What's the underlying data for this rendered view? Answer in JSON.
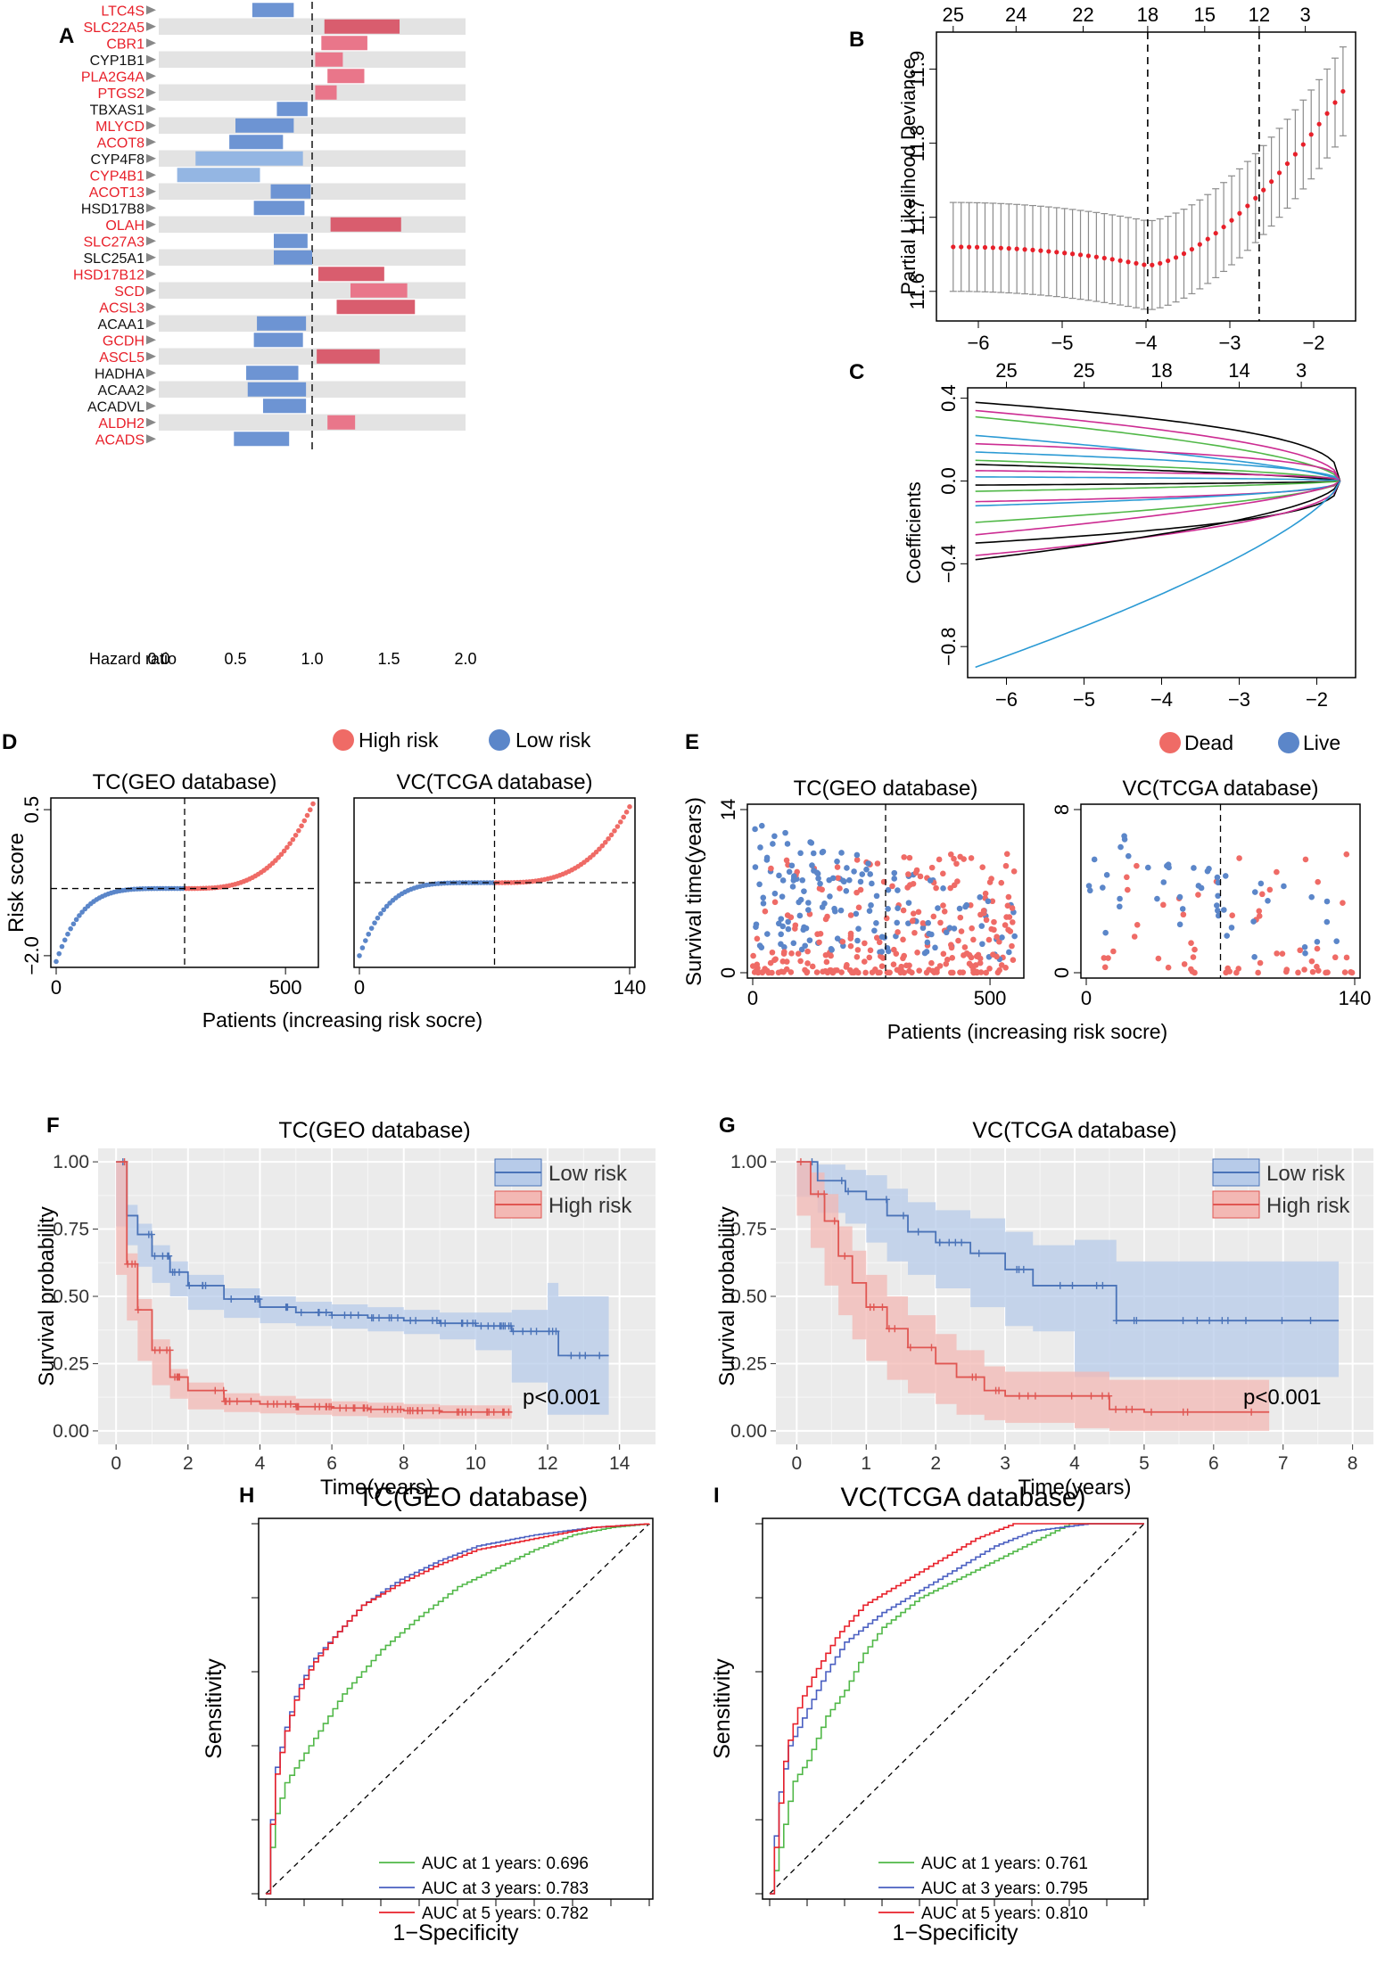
{
  "panel_labels": [
    "A",
    "B",
    "C",
    "D",
    "E",
    "F",
    "G",
    "H",
    "I"
  ],
  "chart_data": [
    {
      "panel": "A",
      "type": "bar",
      "subtype": "forest-interval",
      "xlabel": "Hazard ratio",
      "xlim": [
        0.0,
        2.0
      ],
      "xticks": [
        "0.0",
        "0.5",
        "1.0",
        "1.5",
        "2.0"
      ],
      "reference_line": 1.0,
      "significant_color": "#e8202a",
      "normal_color": "#111111",
      "genes": [
        {
          "name": "LTC4S",
          "low": 0.61,
          "high": 0.88,
          "sig": true
        },
        {
          "name": "SLC22A5",
          "low": 1.08,
          "high": 1.57,
          "sig": true
        },
        {
          "name": "CBR1",
          "low": 1.06,
          "high": 1.36,
          "sig": true
        },
        {
          "name": "CYP1B1",
          "low": 1.02,
          "high": 1.2,
          "sig": false
        },
        {
          "name": "PLA2G4A",
          "low": 1.1,
          "high": 1.34,
          "sig": true
        },
        {
          "name": "PTGS2",
          "low": 1.02,
          "high": 1.16,
          "sig": true
        },
        {
          "name": "TBXAS1",
          "low": 0.77,
          "high": 0.97,
          "sig": false
        },
        {
          "name": "MLYCD",
          "low": 0.5,
          "high": 0.88,
          "sig": true
        },
        {
          "name": "ACOT8",
          "low": 0.46,
          "high": 0.81,
          "sig": true
        },
        {
          "name": "CYP4F8",
          "low": 0.24,
          "high": 0.94,
          "sig": false
        },
        {
          "name": "CYP4B1",
          "low": 0.12,
          "high": 0.66,
          "sig": true
        },
        {
          "name": "ACOT13",
          "low": 0.73,
          "high": 0.99,
          "sig": true
        },
        {
          "name": "HSD17B8",
          "low": 0.62,
          "high": 0.95,
          "sig": false
        },
        {
          "name": "OLAH",
          "low": 1.12,
          "high": 1.58,
          "sig": true
        },
        {
          "name": "SLC27A3",
          "low": 0.75,
          "high": 0.97,
          "sig": true
        },
        {
          "name": "SLC25A1",
          "low": 0.75,
          "high": 1.0,
          "sig": false
        },
        {
          "name": "HSD17B12",
          "low": 1.04,
          "high": 1.47,
          "sig": true
        },
        {
          "name": "SCD",
          "low": 1.25,
          "high": 1.62,
          "sig": true
        },
        {
          "name": "ACSL3",
          "low": 1.16,
          "high": 1.67,
          "sig": true
        },
        {
          "name": "ACAA1",
          "low": 0.64,
          "high": 0.96,
          "sig": false
        },
        {
          "name": "GCDH",
          "low": 0.62,
          "high": 0.94,
          "sig": true
        },
        {
          "name": "ASCL5",
          "low": 1.03,
          "high": 1.44,
          "sig": true
        },
        {
          "name": "HADHA",
          "low": 0.57,
          "high": 0.91,
          "sig": false
        },
        {
          "name": "ACAA2",
          "low": 0.58,
          "high": 0.96,
          "sig": false
        },
        {
          "name": "ACADVL",
          "low": 0.68,
          "high": 0.96,
          "sig": false
        },
        {
          "name": "ALDH2",
          "low": 1.1,
          "high": 1.28,
          "sig": true
        },
        {
          "name": "ACADS",
          "low": 0.49,
          "high": 0.85,
          "sig": true
        }
      ]
    },
    {
      "panel": "B",
      "type": "scatter",
      "subtype": "lasso-cv",
      "ylabel": "Partial Likelihood Deviance",
      "xlim": [
        -6.5,
        -1.5
      ],
      "ylim": [
        11.56,
        11.95
      ],
      "xticks": [
        -6,
        -5,
        -4,
        -3,
        -2
      ],
      "yticks": [
        11.6,
        11.7,
        11.8,
        11.9
      ],
      "top_ticks": [
        "25",
        "24",
        "22",
        "18",
        "15",
        "12",
        "3"
      ],
      "lambda_min": -3.98,
      "lambda_1se": -2.65,
      "curve": {
        "x_start": -6.3,
        "x_end": -1.65,
        "points": 50,
        "y_start": 11.66,
        "y_min": 11.635,
        "y_end": 11.87,
        "ci_half_width": 0.06
      },
      "point_color": "#e8202a"
    },
    {
      "panel": "C",
      "type": "line",
      "subtype": "lasso-path",
      "ylabel": "Coefficients",
      "xlim": [
        -6.5,
        -1.5
      ],
      "ylim": [
        -0.95,
        0.45
      ],
      "xticks": [
        -6,
        -5,
        -4,
        -3,
        -2
      ],
      "yticks": [
        "0.4",
        "0.0",
        "-0.4",
        "-0.8"
      ],
      "top_ticks": [
        "25",
        "25",
        "18",
        "14",
        "3"
      ],
      "paths": [
        {
          "start": 0.38,
          "color": "#000000"
        },
        {
          "start": 0.34,
          "color": "#cc2c92"
        },
        {
          "start": 0.31,
          "color": "#51b848"
        },
        {
          "start": 0.22,
          "color": "#2b9ad4"
        },
        {
          "start": 0.18,
          "color": "#cc2c92"
        },
        {
          "start": 0.14,
          "color": "#2b9ad4"
        },
        {
          "start": 0.1,
          "color": "#51b848"
        },
        {
          "start": 0.08,
          "color": "#000000"
        },
        {
          "start": 0.05,
          "color": "#cc2c92"
        },
        {
          "start": 0.02,
          "color": "#2b9ad4"
        },
        {
          "start": -0.02,
          "color": "#000000"
        },
        {
          "start": -0.05,
          "color": "#51b848"
        },
        {
          "start": -0.1,
          "color": "#cc2c92"
        },
        {
          "start": -0.12,
          "color": "#2b9ad4"
        },
        {
          "start": -0.2,
          "color": "#51b848"
        },
        {
          "start": -0.26,
          "color": "#cc2c92"
        },
        {
          "start": -0.3,
          "color": "#000000"
        },
        {
          "start": -0.36,
          "color": "#cc2c92"
        },
        {
          "start": -0.38,
          "color": "#000000"
        },
        {
          "start": -0.9,
          "color": "#2b9ad4"
        }
      ],
      "converge_x": -1.7
    },
    {
      "panel": "D",
      "type": "scatter",
      "subtype": "risk-score-curve",
      "legend": [
        "High risk",
        "Low risk"
      ],
      "ylabel": "Risk score",
      "xlabel": "Patients (increasing risk socre)",
      "high_color": "#ef6b66",
      "low_color": "#5b86c9",
      "subplots": [
        {
          "title": "TC(GEO database)",
          "n": 560,
          "cutoff": 280,
          "ylim": [
            -2.2,
            0.7
          ],
          "yticks": [
            "0.5",
            "−2.0"
          ],
          "xticks": [
            "0",
            "500"
          ],
          "score_min": -2.1,
          "score_mid": -0.85,
          "score_max": 0.6
        },
        {
          "title": "VC(TCGA database)",
          "n": 140,
          "cutoff": 70,
          "ylim": [
            -2.2,
            0.7
          ],
          "yticks": [],
          "xticks": [
            "0",
            "140"
          ],
          "score_min": -2.0,
          "score_mid": -0.75,
          "score_max": 0.55
        }
      ]
    },
    {
      "panel": "E",
      "type": "scatter",
      "subtype": "survival-status",
      "legend": [
        "Dead",
        "Live"
      ],
      "ylabel": "Survival time(years)",
      "xlabel": "Patients (increasing risk socre)",
      "dead_color": "#ef6b66",
      "live_color": "#5b86c9",
      "subplots": [
        {
          "title": "TC(GEO database)",
          "n": 560,
          "cutoff": 280,
          "ylim": [
            0,
            14
          ],
          "yticks": [
            "0",
            "14"
          ],
          "xticks": [
            "0",
            "500"
          ]
        },
        {
          "title": "VC(TCGA database)",
          "n": 140,
          "cutoff": 70,
          "ylim": [
            0,
            8
          ],
          "yticks": [
            "0",
            "8"
          ],
          "xticks": [
            "0",
            "140"
          ]
        }
      ]
    },
    {
      "panel": "F",
      "type": "line",
      "subtype": "kaplan-meier",
      "title": "TC(GEO database)",
      "xlabel": "Time(years)",
      "ylabel": "Survival probability",
      "xlim": [
        -0.5,
        15
      ],
      "ylim": [
        -0.05,
        1.05
      ],
      "xticks": [
        0,
        2,
        4,
        6,
        8,
        10,
        12,
        14
      ],
      "yticks": [
        "0.00",
        "0.25",
        "0.50",
        "0.75",
        "1.00"
      ],
      "pvalue": "p<0.001",
      "series": [
        {
          "name": "Low risk",
          "color": "#4a73b8",
          "fill": "#b7cbe9",
          "x": [
            0,
            0.3,
            0.6,
            1,
            1.5,
            2,
            3,
            4,
            5,
            6,
            7,
            8,
            9,
            10,
            11,
            12,
            12.3,
            13.7
          ],
          "y": [
            1,
            0.8,
            0.73,
            0.65,
            0.59,
            0.54,
            0.49,
            0.46,
            0.44,
            0.43,
            0.42,
            0.41,
            0.4,
            0.39,
            0.37,
            0.37,
            0.28,
            0.28
          ],
          "lower": [
            1,
            0.76,
            0.69,
            0.61,
            0.55,
            0.5,
            0.45,
            0.42,
            0.4,
            0.39,
            0.38,
            0.37,
            0.36,
            0.34,
            0.3,
            0.18,
            0.06,
            0.06
          ],
          "upper": [
            1,
            0.84,
            0.77,
            0.69,
            0.63,
            0.58,
            0.53,
            0.5,
            0.48,
            0.47,
            0.46,
            0.45,
            0.44,
            0.44,
            0.45,
            0.55,
            0.5,
            0.5
          ]
        },
        {
          "name": "High risk",
          "color": "#e05652",
          "fill": "#f3b8b4",
          "x": [
            0,
            0.3,
            0.6,
            1,
            1.5,
            2,
            3,
            4,
            5,
            6,
            7,
            8,
            9,
            10,
            11
          ],
          "y": [
            1,
            0.62,
            0.45,
            0.3,
            0.2,
            0.15,
            0.11,
            0.1,
            0.09,
            0.085,
            0.08,
            0.075,
            0.07,
            0.07,
            0.07
          ],
          "lower": [
            1,
            0.58,
            0.41,
            0.26,
            0.17,
            0.12,
            0.08,
            0.07,
            0.065,
            0.06,
            0.055,
            0.05,
            0.045,
            0.045,
            0.045
          ],
          "upper": [
            1,
            0.66,
            0.49,
            0.34,
            0.23,
            0.18,
            0.14,
            0.13,
            0.12,
            0.11,
            0.105,
            0.1,
            0.095,
            0.095,
            0.095
          ]
        }
      ]
    },
    {
      "panel": "G",
      "type": "line",
      "subtype": "kaplan-meier",
      "title": "VC(TCGA database)",
      "xlabel": "Time(years)",
      "ylabel": "Survival probability",
      "xlim": [
        -0.3,
        8.3
      ],
      "ylim": [
        -0.05,
        1.05
      ],
      "xticks": [
        0,
        1,
        2,
        3,
        4,
        5,
        6,
        7,
        8
      ],
      "yticks": [
        "0.00",
        "0.25",
        "0.50",
        "0.75",
        "1.00"
      ],
      "pvalue": "p<0.001",
      "series": [
        {
          "name": "Low risk",
          "color": "#4a73b8",
          "fill": "#b7cbe9",
          "x": [
            0,
            0.3,
            0.7,
            1,
            1.3,
            1.6,
            2,
            2.5,
            3,
            3.4,
            4,
            4.6,
            5,
            6,
            7,
            7.8
          ],
          "y": [
            1,
            0.93,
            0.89,
            0.86,
            0.8,
            0.74,
            0.7,
            0.66,
            0.6,
            0.54,
            0.54,
            0.41,
            0.41,
            0.41,
            0.41,
            0.41
          ],
          "lower": [
            1,
            0.87,
            0.81,
            0.77,
            0.7,
            0.63,
            0.58,
            0.53,
            0.46,
            0.39,
            0.37,
            0.2,
            0.2,
            0.2,
            0.2,
            0.2
          ],
          "upper": [
            1,
            0.99,
            0.97,
            0.95,
            0.9,
            0.85,
            0.82,
            0.79,
            0.74,
            0.69,
            0.71,
            0.63,
            0.63,
            0.63,
            0.63,
            0.63
          ]
        },
        {
          "name": "High risk",
          "color": "#e05652",
          "fill": "#f3b8b4",
          "x": [
            0,
            0.2,
            0.4,
            0.6,
            0.8,
            1,
            1.3,
            1.6,
            2,
            2.3,
            2.7,
            3,
            4,
            4.5,
            5,
            6,
            6.8
          ],
          "y": [
            1,
            0.88,
            0.78,
            0.65,
            0.55,
            0.46,
            0.38,
            0.31,
            0.25,
            0.2,
            0.15,
            0.13,
            0.13,
            0.08,
            0.07,
            0.07,
            0.07
          ],
          "lower": [
            1,
            0.8,
            0.68,
            0.54,
            0.43,
            0.34,
            0.26,
            0.19,
            0.14,
            0.1,
            0.06,
            0.04,
            0.03,
            0.01,
            0.0,
            0.0,
            0.0
          ],
          "upper": [
            1,
            0.96,
            0.88,
            0.76,
            0.67,
            0.58,
            0.5,
            0.43,
            0.36,
            0.3,
            0.24,
            0.22,
            0.22,
            0.19,
            0.19,
            0.19,
            0.19
          ]
        }
      ]
    },
    {
      "panel": "H",
      "type": "line",
      "subtype": "roc",
      "title": "TC(GEO database)",
      "xlabel": "1−Specificity",
      "ylabel": "Sensitivity",
      "series": [
        {
          "name": "AUC at 1 years: 0.696",
          "color": "#51b848",
          "x": [
            0,
            0.02,
            0.05,
            0.1,
            0.15,
            0.2,
            0.3,
            0.4,
            0.5,
            0.6,
            0.7,
            0.8,
            0.9,
            1
          ],
          "y": [
            0,
            0.2,
            0.3,
            0.38,
            0.46,
            0.54,
            0.66,
            0.75,
            0.83,
            0.88,
            0.93,
            0.97,
            0.99,
            1
          ]
        },
        {
          "name": "AUC at 3 years: 0.783",
          "color": "#4a5fc1",
          "x": [
            0,
            0.02,
            0.05,
            0.08,
            0.12,
            0.18,
            0.25,
            0.35,
            0.45,
            0.55,
            0.7,
            0.85,
            1
          ],
          "y": [
            0,
            0.32,
            0.45,
            0.55,
            0.63,
            0.7,
            0.78,
            0.85,
            0.9,
            0.94,
            0.97,
            0.99,
            1
          ]
        },
        {
          "name": "AUC at 5 years: 0.782",
          "color": "#e8202a",
          "x": [
            0,
            0.02,
            0.05,
            0.08,
            0.12,
            0.18,
            0.25,
            0.35,
            0.45,
            0.55,
            0.7,
            0.85,
            1
          ],
          "y": [
            0,
            0.3,
            0.44,
            0.54,
            0.62,
            0.7,
            0.78,
            0.84,
            0.89,
            0.93,
            0.96,
            0.99,
            1
          ]
        }
      ]
    },
    {
      "panel": "I",
      "type": "line",
      "subtype": "roc",
      "title": "VC(TCGA database)",
      "xlabel": "1−Specificity",
      "ylabel": "Sensitivity",
      "series": [
        {
          "name": "AUC at 1 years: 0.761",
          "color": "#51b848",
          "x": [
            0,
            0.03,
            0.06,
            0.1,
            0.15,
            0.2,
            0.25,
            0.3,
            0.4,
            0.5,
            0.6,
            0.7,
            0.8,
            1
          ],
          "y": [
            0,
            0.15,
            0.3,
            0.36,
            0.48,
            0.55,
            0.65,
            0.72,
            0.8,
            0.85,
            0.9,
            0.95,
            1,
            1
          ]
        },
        {
          "name": "AUC at 3 years: 0.795",
          "color": "#4a5fc1",
          "x": [
            0,
            0.02,
            0.05,
            0.1,
            0.15,
            0.2,
            0.3,
            0.4,
            0.5,
            0.6,
            0.7,
            0.85,
            1
          ],
          "y": [
            0,
            0.25,
            0.4,
            0.5,
            0.6,
            0.68,
            0.76,
            0.82,
            0.88,
            0.94,
            0.98,
            1,
            1
          ]
        },
        {
          "name": "AUC at 5 years: 0.810",
          "color": "#e8202a",
          "x": [
            0,
            0.02,
            0.04,
            0.08,
            0.12,
            0.18,
            0.25,
            0.35,
            0.45,
            0.55,
            0.65,
            0.75,
            1
          ],
          "y": [
            0,
            0.2,
            0.38,
            0.52,
            0.6,
            0.7,
            0.78,
            0.84,
            0.9,
            0.96,
            1,
            1,
            1
          ]
        }
      ]
    }
  ]
}
